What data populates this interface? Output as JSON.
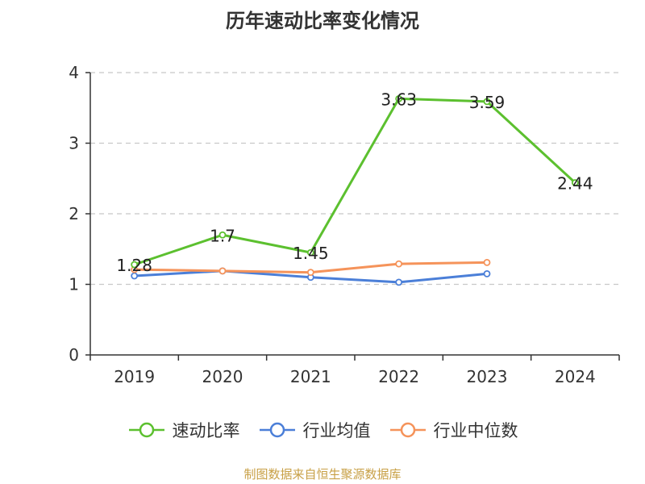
{
  "chart_data": {
    "type": "line",
    "title": "历年速动比率变化情况",
    "categories": [
      "2019",
      "2020",
      "2021",
      "2022",
      "2023",
      "2024"
    ],
    "ylim": [
      0,
      4
    ],
    "yticks": [
      0,
      1,
      2,
      3,
      4
    ],
    "grid": true,
    "legend_position": "bottom",
    "series": [
      {
        "name": "速动比率",
        "color": "#5cc02f",
        "values": [
          1.28,
          1.7,
          1.45,
          3.63,
          3.59,
          2.44
        ],
        "labels": [
          "1.28",
          "1.7",
          "1.45",
          "3.63",
          "3.59",
          "2.44"
        ]
      },
      {
        "name": "行业均值",
        "color": "#4b7fd8",
        "values": [
          1.12,
          1.19,
          1.1,
          1.03,
          1.15,
          null
        ]
      },
      {
        "name": "行业中位数",
        "color": "#f5935a",
        "values": [
          1.21,
          1.19,
          1.17,
          1.29,
          1.31,
          null
        ]
      }
    ]
  },
  "source": "制图数据来自恒生聚源数据库"
}
